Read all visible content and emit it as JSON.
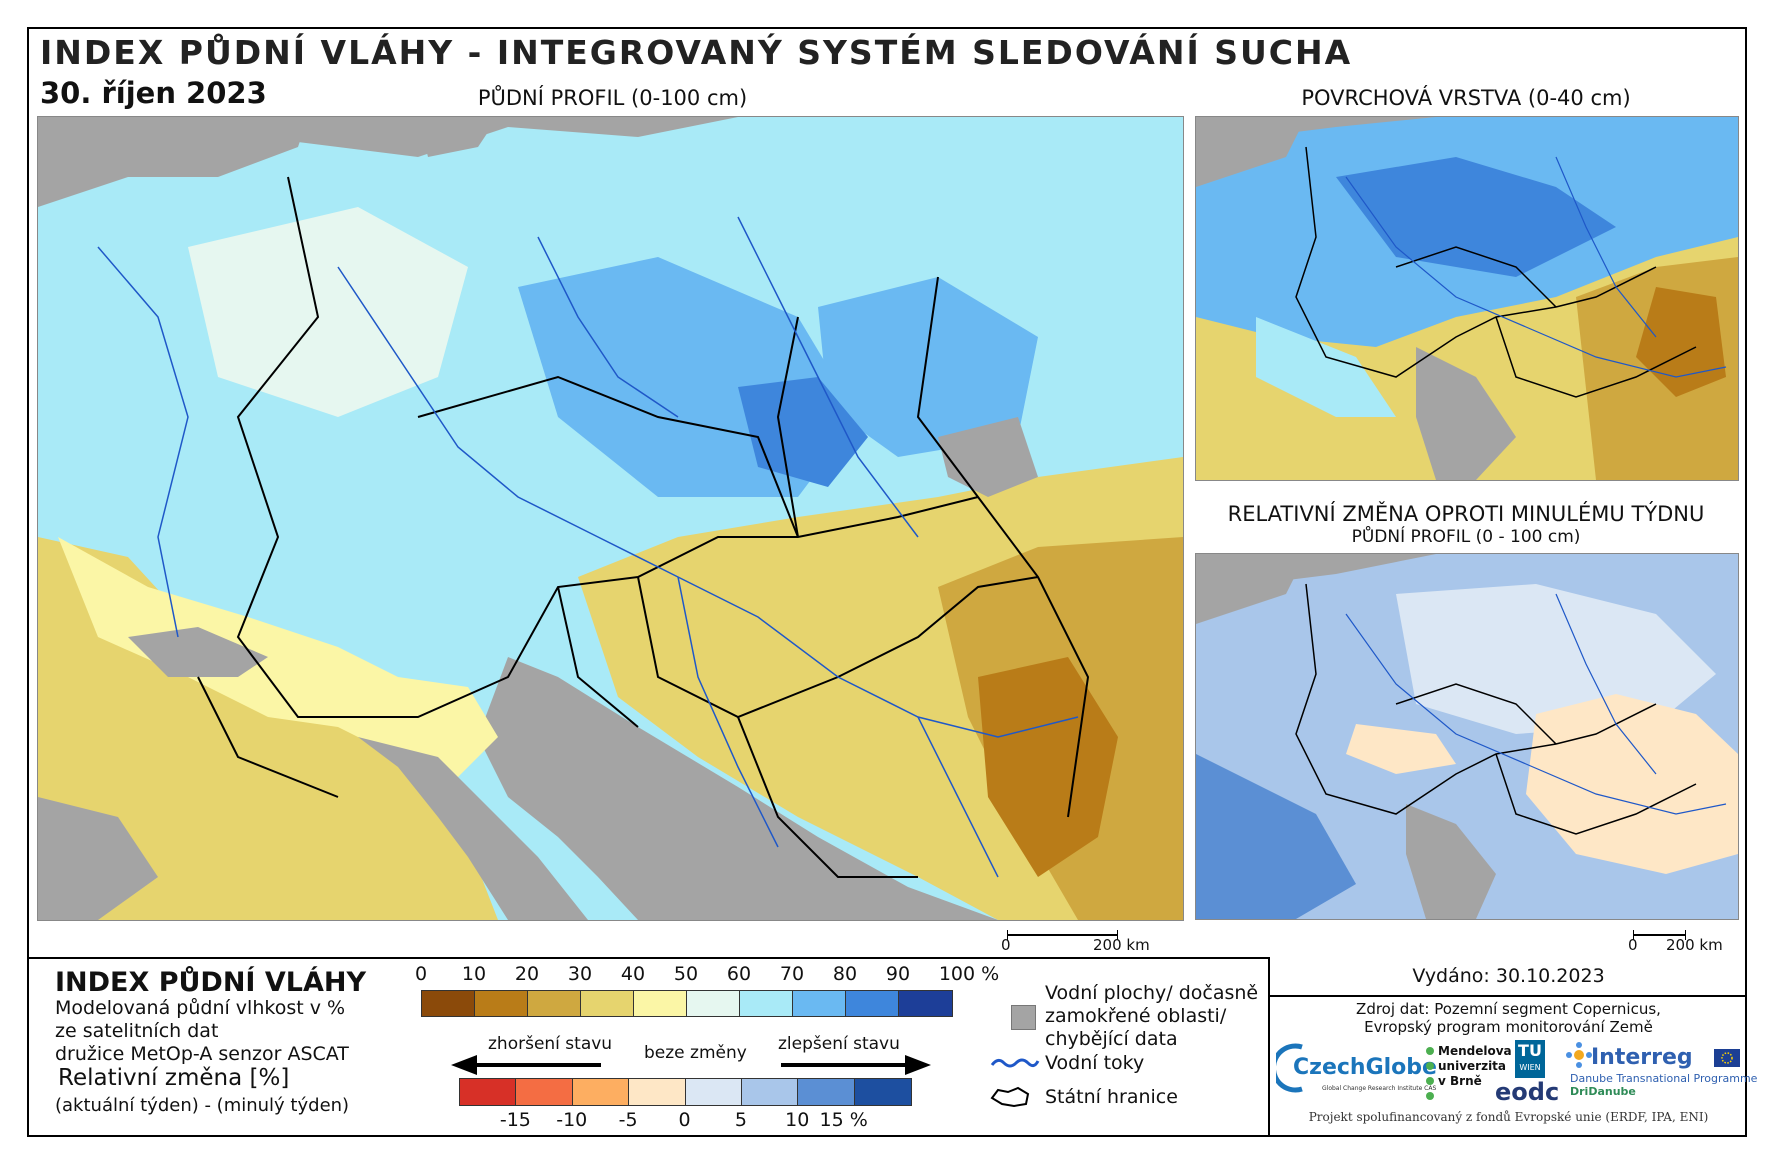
{
  "header": {
    "title": "INDEX PŮDNÍ VLÁHY - INTEGROVANÝ SYSTÉM SLEDOVÁNÍ SUCHA",
    "date": "30. říjen 2023"
  },
  "maps": {
    "main_label": "PŮDNÍ PROFIL (0-100 cm)",
    "surface_label": "POVRCHOVÁ VRSTVA (0-40 cm)",
    "change_label": "RELATIVNÍ ZMĚNA OPROTI MINULÉMU TÝDNU",
    "change_sublabel": "PŮDNÍ PROFIL (0 - 100 cm)",
    "scalebar_main": {
      "zero": "0",
      "end": "200 km"
    },
    "scalebar_change": {
      "zero": "0",
      "end": "200 km"
    }
  },
  "legend": {
    "title": "INDEX PŮDNÍ VLÁHY",
    "desc_line1": "Modelovaná půdní vlhkost v %",
    "desc_line2": "ze satelitních dat",
    "desc_line3": "družice MetOp-A senzor ASCAT",
    "change_title": "Relativní změna [%]",
    "change_desc": "(aktuální týden) - (minulý týden)",
    "index_ticks": [
      "0",
      "10",
      "20",
      "30",
      "40",
      "50",
      "60",
      "70",
      "80",
      "90",
      "100 %"
    ],
    "index_colors": [
      "#8b4a0a",
      "#b97c18",
      "#cfa840",
      "#e6d46e",
      "#fbf6a6",
      "#e6f7f0",
      "#a9eaf7",
      "#6ab9f2",
      "#3e86dc",
      "#1d3e98"
    ],
    "worse_label": "zhoršení stavu",
    "nochange_label": "beze změny",
    "better_label": "zlepšení stavu",
    "change_ticks": [
      "-15",
      "-10",
      "-5",
      "0",
      "5",
      "10",
      "15 %"
    ],
    "change_colors": [
      "#d73027",
      "#f46d43",
      "#fdae61",
      "#fee7c6",
      "#dbe7f4",
      "#a9c6ea",
      "#5b8fd4",
      "#1d4fa0"
    ],
    "water_label_1": "Vodní plochy/ dočasně",
    "water_label_2": "zamokřené oblasti/",
    "water_label_3": "chybějící data",
    "rivers_label": "Vodní toky",
    "borders_label": "Státní hranice"
  },
  "info": {
    "issued": "Vydáno: 30.10.2023",
    "source_line1": "Zdroj dat: Pozemní segment Copernicus,",
    "source_line2": "Evropský program monitorování Země",
    "funding": "Projekt spolufinancovaný z fondů Evropské unie (ERDF, IPA, ENI)"
  },
  "logos": {
    "czechglobe": "CzechGlobe",
    "czechglobe_sub": "Global Change Research Institute CAS",
    "mendel_1": "Mendelova",
    "mendel_2": "univerzita",
    "mendel_3": "v Brně",
    "tu_wien_1": "TU",
    "tu_wien_2": "WIEN",
    "eodc": "eodc",
    "interreg": "Interreg",
    "interreg_sub1": "Danube Transnational Programme",
    "interreg_sub2": "DriDanube"
  }
}
